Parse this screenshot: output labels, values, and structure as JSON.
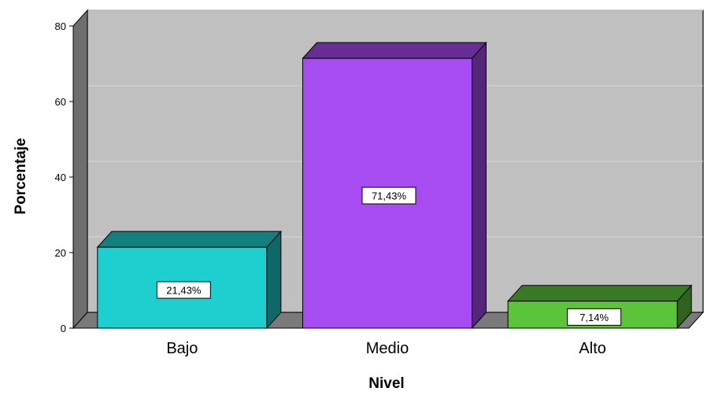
{
  "chart_data": {
    "type": "bar",
    "style": "3d",
    "categories": [
      "Bajo",
      "Medio",
      "Alto"
    ],
    "values": [
      21.43,
      71.43,
      7.14
    ],
    "data_labels": [
      "21,43%",
      "71,43%",
      "7,14%"
    ],
    "colors": [
      "#1ecfcf",
      "#a64cf0",
      "#5cc43a"
    ],
    "xlabel": "Nivel",
    "ylabel": "Porcentaje",
    "ylim": [
      0,
      80
    ],
    "yticks": [
      "0",
      "20",
      "40",
      "60",
      "80"
    ],
    "grid": true,
    "plot_background": "#c0c0c0"
  }
}
